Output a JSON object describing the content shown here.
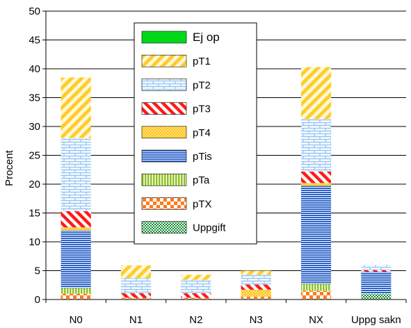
{
  "chart_data": {
    "type": "bar",
    "stacked": true,
    "title": "",
    "xlabel": "",
    "ylabel": "Procent",
    "ylim": [
      0,
      50
    ],
    "yticks": [
      0,
      5,
      10,
      15,
      20,
      25,
      30,
      35,
      40,
      45,
      50
    ],
    "grid": true,
    "legend_position": "top-center",
    "categories": [
      "N0",
      "N1",
      "N2",
      "N3",
      "NX",
      "Uppg sakn"
    ],
    "series": [
      {
        "name": "Uppgift",
        "pattern": "dots",
        "color": "#0a8a2a",
        "values": [
          0.0,
          0.0,
          0.0,
          0.0,
          0.0,
          1.0
        ]
      },
      {
        "name": "pTX",
        "pattern": "checker",
        "color": "#ff7a1a",
        "values": [
          1.0,
          0.3,
          0.3,
          0.5,
          1.5,
          0.0
        ]
      },
      {
        "name": "pTa",
        "pattern": "vertical",
        "color": "#8cc21e",
        "values": [
          1.0,
          0.0,
          0.0,
          0.0,
          1.2,
          0.0
        ]
      },
      {
        "name": "pTis",
        "pattern": "horizontal",
        "color": "#2a62c9",
        "values": [
          10.0,
          0.0,
          0.0,
          0.0,
          17.0,
          3.8
        ]
      },
      {
        "name": "pT4",
        "pattern": "dots",
        "color": "#ffc21a",
        "values": [
          0.5,
          0.0,
          0.0,
          1.2,
          0.5,
          0.0
        ]
      },
      {
        "name": "pT3",
        "pattern": "diag-down",
        "color": "#ff1a1a",
        "values": [
          2.8,
          0.8,
          0.8,
          0.9,
          2.0,
          0.3
        ]
      },
      {
        "name": "pT2",
        "pattern": "brick",
        "color": "#8fc1f2",
        "values": [
          12.7,
          2.6,
          2.3,
          1.7,
          9.1,
          0.9
        ]
      },
      {
        "name": "pT1",
        "pattern": "diag-up",
        "color": "#ffcc2a",
        "values": [
          10.5,
          2.2,
          0.9,
          0.7,
          9.0,
          0.0
        ]
      },
      {
        "name": "Ej op",
        "pattern": "solid",
        "color": "#00d91a",
        "values": [
          0.0,
          0.0,
          0.0,
          0.0,
          0.0,
          0.0
        ]
      }
    ]
  },
  "legend": {
    "order": [
      "Ej op",
      "pT1",
      "pT2",
      "pT3",
      "pT4",
      "pTis",
      "pTa",
      "pTX",
      "Uppgift"
    ]
  }
}
